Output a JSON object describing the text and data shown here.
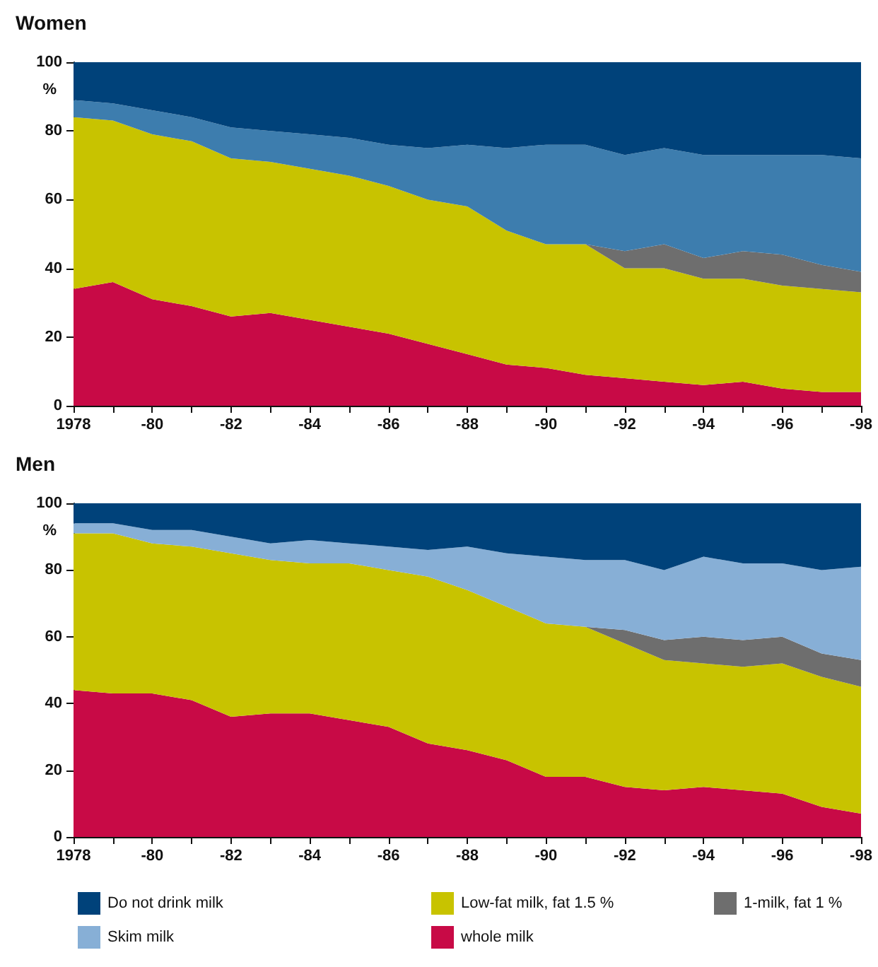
{
  "chart_data": [
    {
      "type": "area",
      "title": "Women",
      "ylabel": "%",
      "stacked": true,
      "grid": false,
      "legend": false,
      "categories": [
        "1978",
        null,
        "-80",
        null,
        "-82",
        null,
        "-84",
        null,
        "-86",
        null,
        "-88",
        null,
        "-90",
        null,
        "-92",
        null,
        "-94",
        null,
        "-96",
        null,
        "-98"
      ],
      "ylim": [
        0,
        100
      ],
      "yticks": [
        0,
        20,
        40,
        60,
        80,
        100
      ],
      "series": [
        {
          "color": "#c80a46",
          "values": [
            34,
            36,
            31,
            29,
            26,
            27,
            25,
            23,
            21,
            18,
            15,
            12,
            11,
            9,
            8,
            7,
            6,
            7,
            5,
            4,
            4
          ]
        },
        {
          "color": "#c8c300",
          "values": [
            50,
            47,
            48,
            48,
            46,
            44,
            44,
            44,
            43,
            42,
            43,
            39,
            36,
            38,
            32,
            33,
            31,
            30,
            30,
            30,
            29
          ]
        },
        {
          "color": "#6e6e6e",
          "values": [
            0,
            0,
            0,
            0,
            0,
            0,
            0,
            0,
            0,
            0,
            0,
            0,
            0,
            0,
            5,
            7,
            6,
            8,
            9,
            7,
            6
          ]
        },
        {
          "color": "#3d7dae",
          "values": [
            5,
            5,
            7,
            7,
            9,
            9,
            10,
            11,
            12,
            15,
            18,
            24,
            29,
            29,
            28,
            28,
            30,
            28,
            29,
            32,
            33
          ]
        },
        {
          "color": "#00427a",
          "values": [
            11,
            12,
            14,
            16,
            19,
            20,
            21,
            22,
            24,
            25,
            24,
            25,
            24,
            24,
            27,
            25,
            27,
            27,
            27,
            27,
            28
          ]
        }
      ]
    },
    {
      "type": "area",
      "title": "Men",
      "ylabel": "%",
      "stacked": true,
      "grid": false,
      "legend": "bottom",
      "categories": [
        "1978",
        null,
        "-80",
        null,
        "-82",
        null,
        "-84",
        null,
        "-86",
        null,
        "-88",
        null,
        "-90",
        null,
        "-92",
        null,
        "-94",
        null,
        "-96",
        null,
        "-98"
      ],
      "ylim": [
        0,
        100
      ],
      "yticks": [
        0,
        20,
        40,
        60,
        80,
        100
      ],
      "series": [
        {
          "name": "whole milk",
          "color": "#c80a46",
          "values": [
            44,
            43,
            43,
            41,
            36,
            37,
            37,
            35,
            33,
            28,
            26,
            23,
            18,
            18,
            15,
            14,
            15,
            14,
            13,
            9,
            7
          ]
        },
        {
          "name": "Low-fat milk, fat 1.5 %",
          "color": "#c8c300",
          "values": [
            47,
            48,
            45,
            46,
            49,
            46,
            45,
            47,
            47,
            50,
            48,
            46,
            46,
            45,
            43,
            39,
            37,
            37,
            39,
            39,
            38
          ]
        },
        {
          "name": "1-milk, fat 1 %",
          "color": "#6e6e6e",
          "values": [
            0,
            0,
            0,
            0,
            0,
            0,
            0,
            0,
            0,
            0,
            0,
            0,
            0,
            0,
            4,
            6,
            8,
            8,
            8,
            7,
            8
          ]
        },
        {
          "name": "Skim milk",
          "color": "#87afd6",
          "values": [
            3,
            3,
            4,
            5,
            5,
            5,
            7,
            6,
            7,
            8,
            13,
            16,
            20,
            20,
            21,
            21,
            24,
            23,
            22,
            25,
            28
          ]
        },
        {
          "name": "Do not drink milk",
          "color": "#00427a",
          "values": [
            6,
            6,
            8,
            8,
            10,
            12,
            11,
            12,
            13,
            14,
            13,
            15,
            16,
            17,
            17,
            20,
            16,
            18,
            18,
            20,
            19
          ]
        }
      ]
    }
  ]
}
